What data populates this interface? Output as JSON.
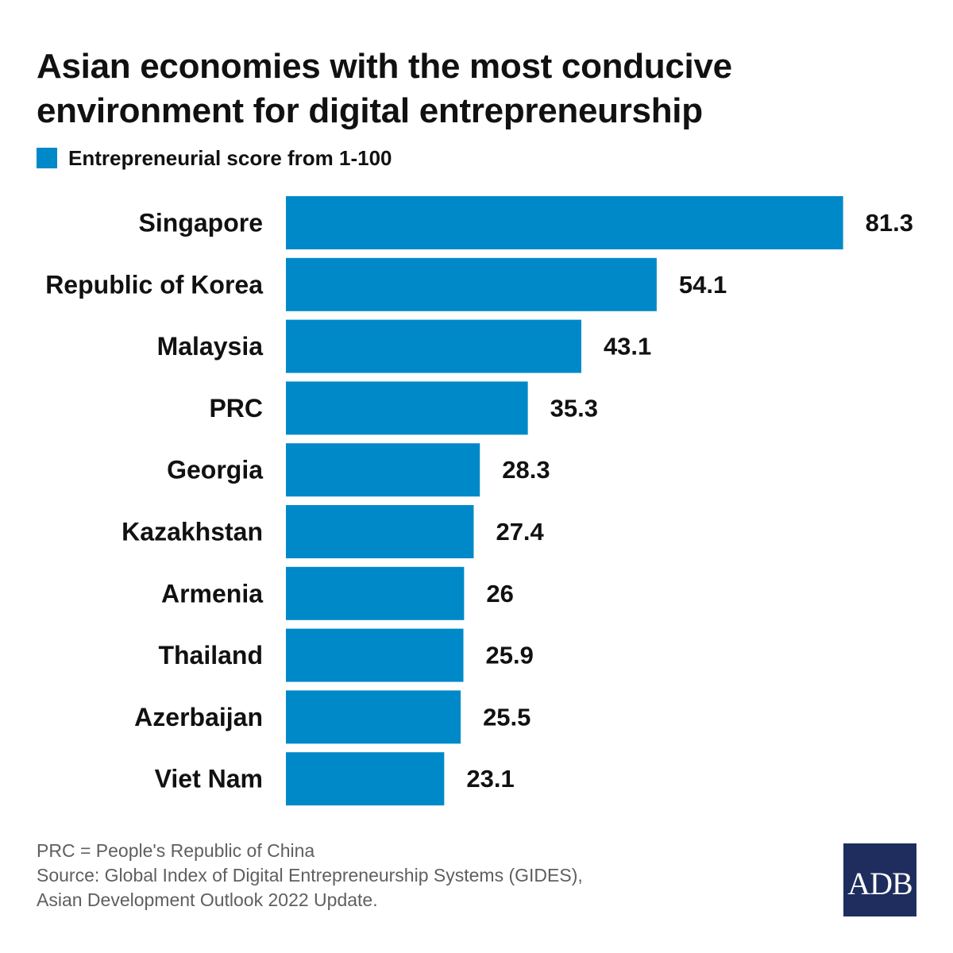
{
  "title_line1": "Asian economies with the most conducive",
  "title_line2": "environment for digital entrepreneurship",
  "legend_label": "Entrepreneurial score from 1-100",
  "bar_color": "#0089c8",
  "chart_data": {
    "type": "bar",
    "orientation": "horizontal",
    "categories": [
      "Singapore",
      "Republic of Korea",
      "Malaysia",
      "PRC",
      "Georgia",
      "Kazakhstan",
      "Armenia",
      "Thailand",
      "Azerbaijan",
      "Viet Nam"
    ],
    "values": [
      81.3,
      54.1,
      43.1,
      35.3,
      28.3,
      27.4,
      26,
      25.9,
      25.5,
      23.1
    ],
    "value_labels": [
      "81.3",
      "54.1",
      "43.1",
      "35.3",
      "28.3",
      "27.4",
      "26",
      "25.9",
      "25.5",
      "23.1"
    ],
    "xlim": [
      0,
      100
    ],
    "grid": false,
    "legend_position": "top-left"
  },
  "footer": {
    "note": "PRC = People's Republic of China",
    "source_line1": "Source: Global Index of Digital Entrepreneurship Systems (GIDES),",
    "source_line2": "Asian Development Outlook 2022 Update."
  },
  "logo_text": "ADB",
  "logo_color": "#1e2d5e"
}
